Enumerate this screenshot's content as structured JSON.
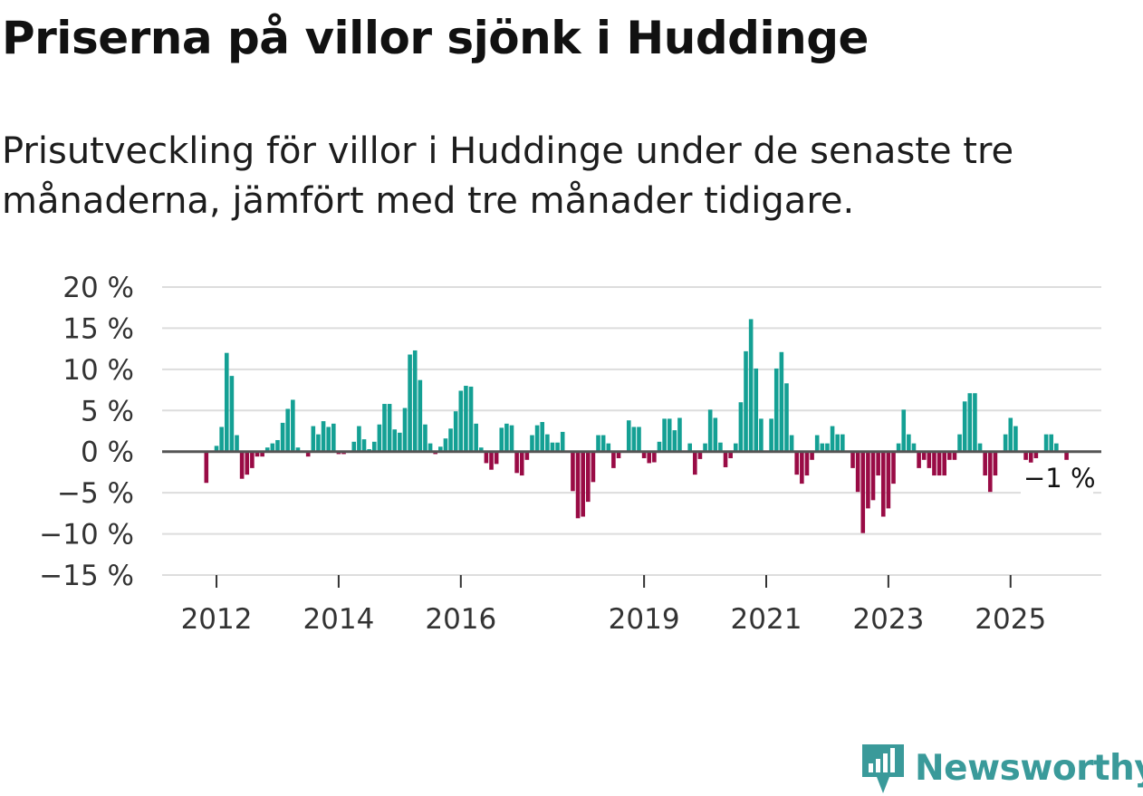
{
  "title": "Priserna på villor sjönk i Huddinge",
  "subtitle": "Prisutveckling för villor i Huddinge under de senaste tre månaderna, jämfört med tre månader tidigare.",
  "brand": {
    "name": "Newsworthy",
    "color": "#3a9a9a"
  },
  "colors": {
    "positive": "#14a094",
    "negative": "#990b45",
    "zero_line": "#555555",
    "grid": "#dddddd"
  },
  "chart_data": {
    "type": "bar",
    "title": "Priserna på villor sjönk i Huddinge",
    "ylabel": "",
    "xlabel": "",
    "ylim": [
      -15,
      20
    ],
    "yticks": [
      20,
      15,
      10,
      5,
      0,
      -5,
      -10,
      -15
    ],
    "ytick_labels": [
      "20 %",
      "15 %",
      "10 %",
      "5 %",
      "0 %",
      "−5 %",
      "−10 %",
      "−15 %"
    ],
    "xticks": [
      {
        "label": "2012",
        "year": 2012
      },
      {
        "label": "2014",
        "year": 2014
      },
      {
        "label": "2016",
        "year": 2016
      },
      {
        "label": "2019",
        "year": 2019
      },
      {
        "label": "2021",
        "year": 2021
      },
      {
        "label": "2023",
        "year": 2023
      },
      {
        "label": "2025",
        "year": 2025
      }
    ],
    "start": "2011-11",
    "frequency": "monthly",
    "unit": "%",
    "last_value_label": "−1 %",
    "values": [
      -3.8,
      0,
      0.7,
      3.0,
      12.0,
      9.2,
      2.0,
      -3.3,
      -2.8,
      -2.0,
      -0.6,
      -0.6,
      0.5,
      1.0,
      1.4,
      3.5,
      5.2,
      6.3,
      0.5,
      0,
      -0.6,
      3.1,
      2.1,
      3.7,
      3.0,
      3.4,
      -0.3,
      -0.3,
      0,
      1.2,
      3.1,
      1.5,
      0.3,
      1.2,
      3.3,
      5.8,
      5.8,
      2.7,
      2.3,
      5.3,
      11.8,
      12.3,
      8.7,
      3.3,
      1.0,
      -0.3,
      0.6,
      1.6,
      2.8,
      4.9,
      7.4,
      8.0,
      7.9,
      3.4,
      0.5,
      -1.4,
      -2.2,
      -1.5,
      2.9,
      3.4,
      3.2,
      -2.6,
      -2.9,
      -1.0,
      2.0,
      3.2,
      3.6,
      2.1,
      1.1,
      1.1,
      2.4,
      0,
      -4.8,
      -8.1,
      -7.9,
      -6.1,
      -3.7,
      2.0,
      2.0,
      1.0,
      -2.0,
      -0.8,
      0,
      3.8,
      3.0,
      3.0,
      -0.8,
      -1.4,
      -1.3,
      1.2,
      4.0,
      4.0,
      2.6,
      4.1,
      0,
      1.0,
      -2.8,
      -0.9,
      1.0,
      5.1,
      4.1,
      1.1,
      -1.9,
      -0.8,
      1.0,
      6.0,
      12.2,
      16.1,
      10.1,
      4.0,
      0,
      4.0,
      10.1,
      12.1,
      8.3,
      2.0,
      -2.8,
      -3.9,
      -2.9,
      -1.0,
      2.0,
      1.0,
      1.0,
      3.1,
      2.1,
      2.1,
      0,
      -2.0,
      -4.9,
      -9.9,
      -6.9,
      -5.9,
      -2.9,
      -7.9,
      -6.9,
      -3.9,
      1.0,
      5.1,
      2.1,
      1.0,
      -2.0,
      -1.0,
      -2.0,
      -2.9,
      -2.9,
      -2.9,
      -1.0,
      -1.0,
      2.1,
      6.1,
      7.1,
      7.1,
      1.0,
      -2.9,
      -4.9,
      -2.9,
      0,
      2.1,
      4.1,
      3.1,
      0,
      -1.0,
      -3.4,
      -0.8,
      0,
      2.1,
      2.1,
      1.0,
      0,
      -1.0
    ]
  }
}
